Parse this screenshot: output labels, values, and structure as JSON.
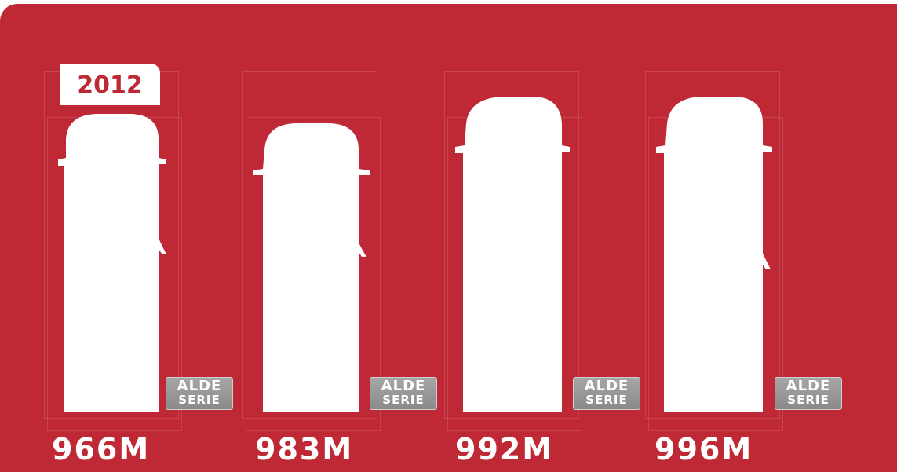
{
  "year_badge": "2012",
  "vehicles": [
    {
      "model": "966M",
      "badge_line1": "ALDE",
      "badge_line2": "SERIE"
    },
    {
      "model": "983M",
      "badge_line1": "ALDE",
      "badge_line2": "SERIE"
    },
    {
      "model": "992M",
      "badge_line1": "ALDE",
      "badge_line2": "SERIE"
    },
    {
      "model": "996M",
      "badge_line1": "ALDE",
      "badge_line2": "SERIE"
    }
  ],
  "colors": {
    "background": "#be2935",
    "silhouette": "#ffffff",
    "badge": "#999999",
    "year_text": "#be2935"
  },
  "icons": [
    "motorhome-silhouette-icon",
    "alde-serie-badge"
  ]
}
